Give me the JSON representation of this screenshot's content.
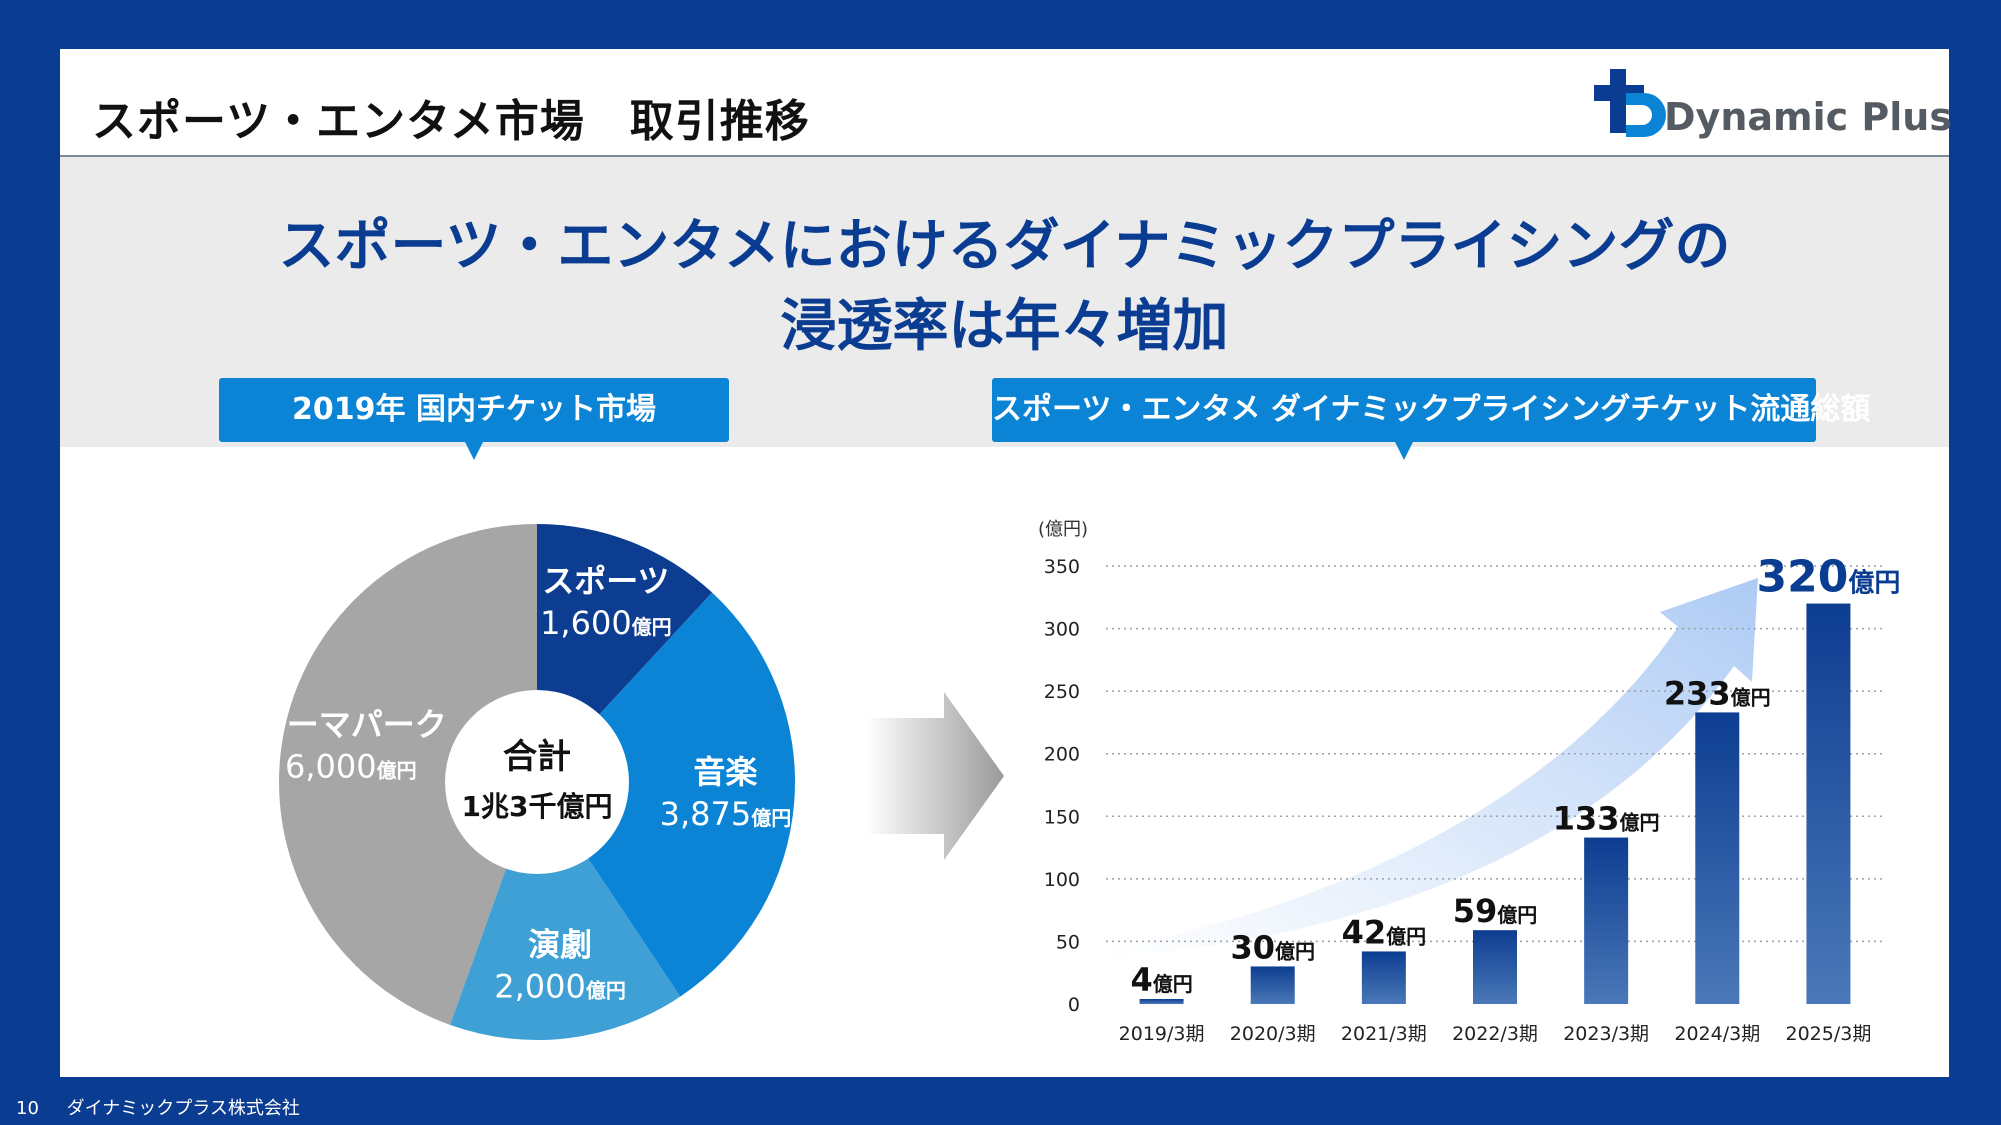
{
  "header": {
    "title": "スポーツ・エンタメ市場　取引推移"
  },
  "logo": {
    "text": "Dynamic Plus"
  },
  "headline": {
    "line1": "スポーツ・エンタメにおけるダイナミックプライシングの",
    "line2": "浸透率は年々増加"
  },
  "left_panel": {
    "label": "2019年 国内チケット市場"
  },
  "right_panel": {
    "label": "スポーツ・エンタメ ダイナミックプライシングチケット流通総額"
  },
  "footer": {
    "page_number": "10",
    "company": "ダイナミックプラス株式会社"
  },
  "colors": {
    "navy": "#0a3d91",
    "sports": "#0d3d91",
    "music": "#0b84d6",
    "theater": "#3ea0d4",
    "theme_park": "#a6a6a6",
    "arrow_light": "#c9dcf7"
  },
  "chart_data": [
    {
      "type": "pie",
      "title": "2019年 国内チケット市場",
      "center_label": "合計",
      "center_value": "1兆3千億円",
      "unit": "億円",
      "slices": [
        {
          "name": "スポーツ",
          "value": 1600,
          "label": "1,600",
          "color": "#0d3d91"
        },
        {
          "name": "音楽",
          "value": 3875,
          "label": "3,875",
          "color": "#0b84d6"
        },
        {
          "name": "演劇",
          "value": 2000,
          "label": "2,000",
          "color": "#3ea0d4"
        },
        {
          "name": "テーマパーク",
          "value": 6000,
          "label": "6,000",
          "color": "#a6a6a6"
        }
      ]
    },
    {
      "type": "bar",
      "title": "スポーツ・エンタメ ダイナミックプライシングチケット流通総額",
      "ylabel": "(億円)",
      "unit": "億円",
      "ylim": [
        0,
        350
      ],
      "yticks": [
        0,
        50,
        100,
        150,
        200,
        250,
        300,
        350
      ],
      "grid": true,
      "categories": [
        "2019/3期",
        "2020/3期",
        "2021/3期",
        "2022/3期",
        "2023/3期",
        "2024/3期",
        "2025/3期"
      ],
      "values": [
        4,
        30,
        42,
        59,
        133,
        233,
        320
      ]
    }
  ]
}
